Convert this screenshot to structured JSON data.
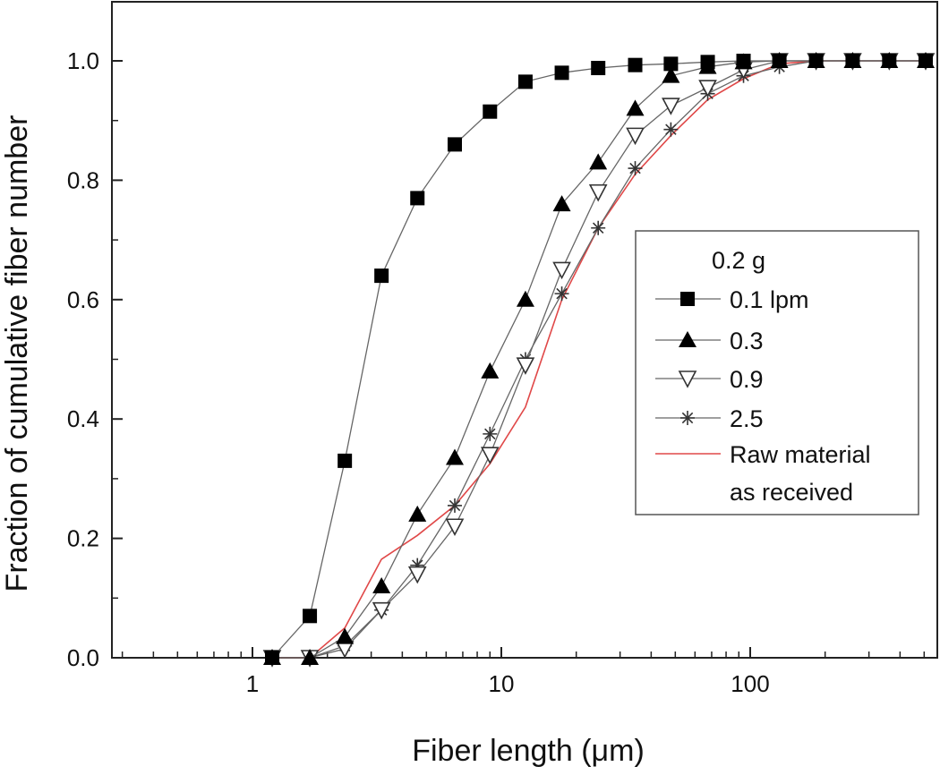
{
  "chart_data": {
    "type": "scatter",
    "title": "",
    "xlabel": "Fiber length (μm)",
    "ylabel": "Fraction of cumulative fiber number",
    "xscale": "log",
    "xlim": [
      0.3,
      500
    ],
    "ylim": [
      0.0,
      1.1
    ],
    "xticks": [
      1,
      10,
      100
    ],
    "xtick_labels": [
      "1",
      "10",
      "100"
    ],
    "yticks": [
      0.0,
      0.2,
      0.4,
      0.6,
      0.8,
      1.0
    ],
    "ytick_labels": [
      "0.0",
      "0.2",
      "0.4",
      "0.6",
      "0.8",
      "1.0"
    ],
    "grid": false,
    "legend_title": "0.2 g",
    "legend_position": "center-right",
    "series": [
      {
        "name": "0.1 lpm",
        "marker": "filled-square",
        "color": "#000000",
        "x": [
          1.2,
          1.7,
          2.35,
          3.3,
          4.6,
          6.5,
          9.0,
          12.5,
          17.5,
          24.5,
          34.5,
          48.0,
          67.5,
          94.0,
          131.0,
          184.0,
          258.0,
          362.0,
          507.0
        ],
        "y": [
          0.0,
          0.07,
          0.33,
          0.64,
          0.77,
          0.86,
          0.915,
          0.965,
          0.98,
          0.988,
          0.993,
          0.995,
          0.998,
          1.0,
          1.0,
          1.0,
          1.0,
          1.0,
          1.0
        ]
      },
      {
        "name": "0.3",
        "marker": "filled-triangle-up",
        "color": "#000000",
        "x": [
          1.2,
          1.7,
          2.35,
          3.3,
          4.6,
          6.5,
          9.0,
          12.5,
          17.5,
          24.5,
          34.5,
          48.0,
          67.5,
          94.0,
          131.0,
          184.0,
          258.0,
          362.0,
          507.0
        ],
        "y": [
          0.0,
          0.0,
          0.035,
          0.12,
          0.24,
          0.335,
          0.48,
          0.6,
          0.76,
          0.83,
          0.92,
          0.975,
          0.99,
          0.998,
          1.0,
          1.0,
          1.0,
          1.0,
          1.0
        ]
      },
      {
        "name": "0.9",
        "marker": "open-triangle-down",
        "color": "#555555",
        "x": [
          1.2,
          1.7,
          2.35,
          3.3,
          4.6,
          6.5,
          9.0,
          12.5,
          17.5,
          24.5,
          34.5,
          48.0,
          67.5,
          94.0,
          131.0,
          184.0,
          258.0,
          362.0,
          507.0
        ],
        "y": [
          0.0,
          0.0,
          0.015,
          0.08,
          0.14,
          0.22,
          0.34,
          0.49,
          0.65,
          0.78,
          0.875,
          0.925,
          0.955,
          0.985,
          1.0,
          1.0,
          1.0,
          1.0,
          1.0
        ]
      },
      {
        "name": "2.5",
        "marker": "asterisk",
        "color": "#555555",
        "x": [
          1.2,
          1.7,
          2.35,
          3.3,
          4.6,
          6.5,
          9.0,
          12.5,
          17.5,
          24.5,
          34.5,
          48.0,
          67.5,
          94.0,
          131.0,
          184.0,
          258.0,
          362.0,
          507.0
        ],
        "y": [
          0.0,
          0.0,
          0.02,
          0.08,
          0.155,
          0.255,
          0.375,
          0.5,
          0.61,
          0.72,
          0.82,
          0.885,
          0.945,
          0.975,
          0.99,
          1.0,
          1.0,
          1.0,
          1.0
        ]
      },
      {
        "name": "Raw material\nas received",
        "marker": "none",
        "color": "#e04848",
        "x": [
          1.2,
          1.7,
          2.35,
          3.3,
          4.6,
          6.5,
          9.0,
          12.5,
          17.5,
          24.5,
          34.5,
          48.0,
          67.5,
          94.0,
          131.0,
          184.0,
          258.0,
          362.0,
          507.0
        ],
        "y": [
          0.0,
          0.0,
          0.05,
          0.165,
          0.205,
          0.255,
          0.325,
          0.42,
          0.6,
          0.72,
          0.81,
          0.875,
          0.935,
          0.97,
          0.995,
          1.0,
          1.0,
          1.0,
          1.0
        ]
      }
    ]
  }
}
